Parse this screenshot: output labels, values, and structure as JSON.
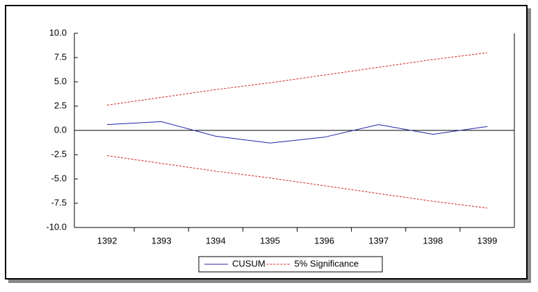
{
  "chart_data": {
    "type": "line",
    "categories": [
      "1392",
      "1393",
      "1394",
      "1395",
      "1396",
      "1397",
      "1398",
      "1399"
    ],
    "series": [
      {
        "name": "CUSUM",
        "color": "#2020a8",
        "dashed": false,
        "values": [
          0.6,
          0.9,
          -0.6,
          -1.3,
          -0.7,
          0.6,
          -0.4,
          0.4
        ]
      },
      {
        "name": "5% Significance",
        "color": "#d02020",
        "dashed": true,
        "values": [
          2.6,
          3.4,
          4.2,
          4.9,
          5.7,
          6.5,
          7.3,
          8.0
        ]
      },
      {
        "color": "#d02020",
        "dashed": true,
        "values": [
          -2.6,
          -3.4,
          -4.2,
          -4.9,
          -5.7,
          -6.5,
          -7.3,
          -8.0
        ]
      }
    ],
    "ylim": [
      -10,
      10
    ],
    "yticks": [
      {
        "value": -10,
        "label": "-10.0"
      },
      -7.5,
      {
        "value": -5,
        "label": "-5.0"
      },
      -2.5,
      {
        "value": 0,
        "label": "0.0"
      },
      2.5,
      {
        "value": 5,
        "label": "5.0"
      },
      7.5,
      {
        "value": 10,
        "label": "10.0"
      }
    ],
    "zero_line": true,
    "legend": "bottom"
  }
}
